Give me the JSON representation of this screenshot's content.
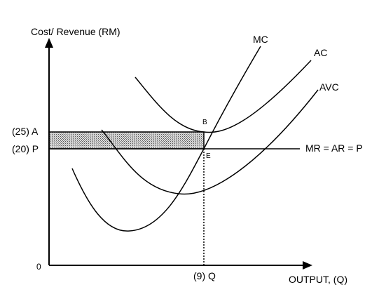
{
  "diagram": {
    "y_axis_label": "Cost/ Revenue (RM)",
    "x_axis_label": "OUTPUT, (Q)",
    "origin_label": "0",
    "curves": {
      "mc": "MC",
      "ac": "AC",
      "avc": "AVC",
      "demand": "MR = AR = P"
    },
    "points": {
      "b": "B",
      "e": "E"
    },
    "y_ticks": {
      "a": "(25) A",
      "p": "(20) P"
    },
    "x_ticks": {
      "q": "(9) Q"
    },
    "values": {
      "average_cost_A": 25,
      "price_P": 20,
      "output_Q": 9
    },
    "colors": {
      "line": "#000000",
      "shaded_area_fill": "#c8c8c8"
    }
  }
}
